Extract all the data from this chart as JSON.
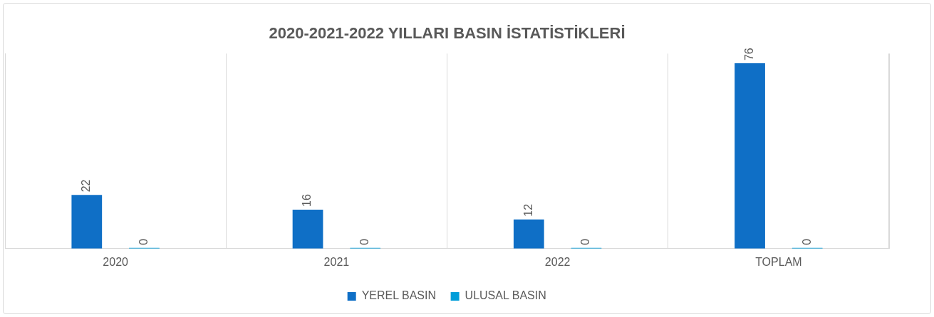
{
  "chart_data": {
    "type": "bar",
    "title": "2020-2021-2022 YILLARI BASIN İSTATİSTİKLERİ",
    "categories": [
      "2020",
      "2021",
      "2022",
      "TOPLAM"
    ],
    "series": [
      {
        "name": "YEREL BASIN",
        "color": "#0f6fc6",
        "values": [
          22,
          16,
          12,
          76
        ]
      },
      {
        "name": "ULUSAL BASIN",
        "color": "#009dd9",
        "values": [
          0,
          0,
          0,
          0
        ]
      }
    ],
    "data_labels": true,
    "grid": "x",
    "legend": "bottom",
    "tick_labels": "x"
  }
}
